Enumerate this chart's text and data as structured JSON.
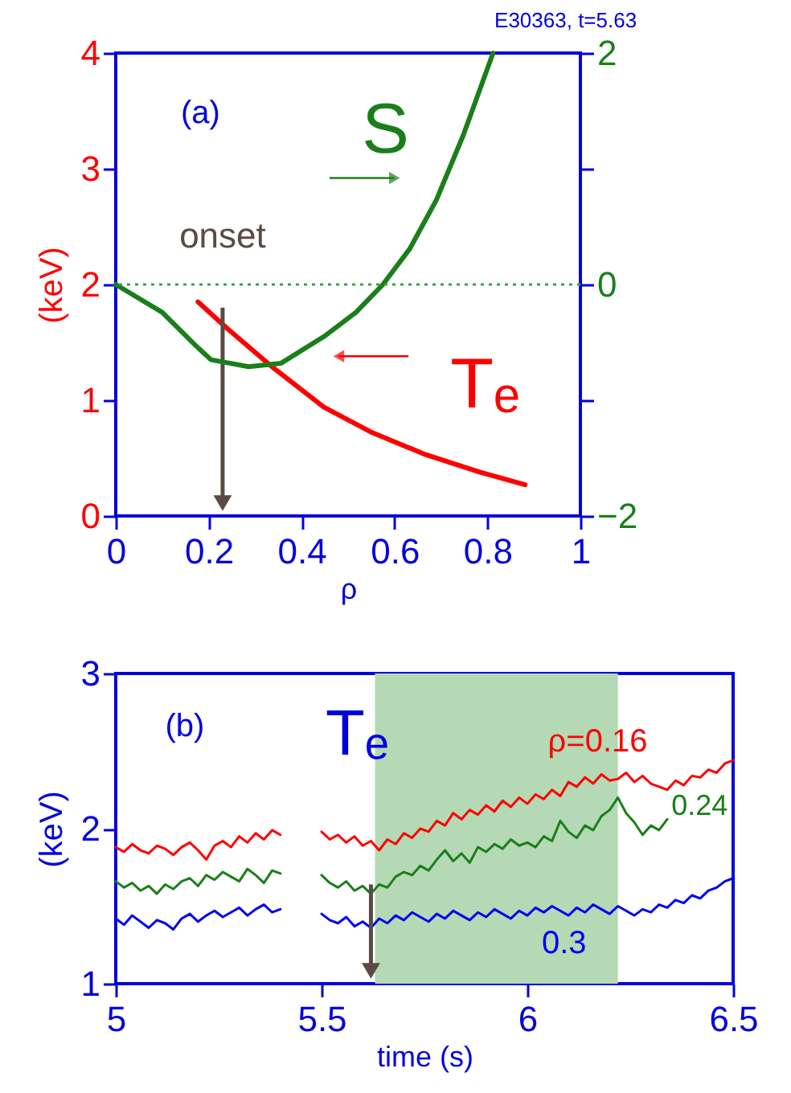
{
  "chart_data": [
    {
      "type": "line",
      "title": "E30363,  t=5.63",
      "xlabel": "ρ",
      "ylabel": "(keV)",
      "annotations": [
        "(a)"
      ],
      "xlim": [
        0,
        1
      ],
      "xticks": [
        0,
        0.2,
        0.4,
        0.6,
        0.8,
        1
      ],
      "ylim": [
        0,
        4
      ],
      "yticks": [
        0,
        1,
        2,
        3,
        4
      ],
      "y2lim": [
        -2,
        2
      ],
      "y2ticks": [
        -2,
        {
          "value": -1,
          "label": null
        },
        0,
        {
          "value": 1,
          "label": null
        },
        2
      ],
      "series": [
        {
          "name": "S",
          "color": "#1a7f1a",
          "axis": "y2",
          "x": [
            0,
            0.1,
            0.17,
            0.205,
            0.286,
            0.356,
            0.448,
            0.517,
            0.575,
            0.633,
            0.69,
            0.748,
            0.812
          ],
          "values": [
            0,
            -0.24,
            -0.52,
            -0.65,
            -0.71,
            -0.68,
            -0.45,
            -0.24,
            0,
            0.31,
            0.73,
            1.29,
            2
          ]
        },
        {
          "name": "Tₑ",
          "color": "#ff0000",
          "x": [
            0.177,
            0.24,
            0.333,
            0.448,
            0.552,
            0.667,
            0.783,
            0.881
          ],
          "values": [
            1.85,
            1.62,
            1.3,
            0.94,
            0.72,
            0.53,
            0.38,
            0.27
          ]
        }
      ],
      "ref_lines": [
        {
          "axis": "y2",
          "value": 0,
          "color": "#3aa63a",
          "line_style": "dotted"
        },
        {
          "axis": "x",
          "value": 0.23,
          "label": "onset",
          "color": "#5b4a44"
        }
      ]
    },
    {
      "type": "line",
      "xlabel": "time (s)",
      "ylabel": "(keV)",
      "annotations": [
        "(b)",
        "Tₑ"
      ],
      "xlim": [
        5,
        6.5
      ],
      "xticks": [
        5,
        5.5,
        6,
        6.5
      ],
      "ylim": [
        1,
        3
      ],
      "yticks": [
        1,
        2,
        3
      ],
      "x": [
        5,
        5.02,
        5.04,
        5.06,
        5.08,
        5.1,
        5.12,
        5.14,
        5.16,
        5.18,
        5.2,
        5.22,
        5.24,
        5.26,
        5.28,
        5.3,
        5.32,
        5.34,
        5.36,
        5.38,
        5.4,
        5.45,
        5.5,
        5.52,
        5.54,
        5.56,
        5.58,
        5.6,
        5.62,
        5.64,
        5.66,
        5.68,
        5.7,
        5.72,
        5.74,
        5.76,
        5.78,
        5.8,
        5.82,
        5.84,
        5.86,
        5.88,
        5.9,
        5.92,
        5.94,
        5.96,
        5.98,
        6,
        6.02,
        6.04,
        6.06,
        6.08,
        6.1,
        6.12,
        6.14,
        6.16,
        6.18,
        6.2,
        6.22,
        6.24,
        6.26,
        6.28,
        6.3,
        6.32,
        6.34,
        6.36,
        6.38,
        6.4,
        6.42,
        6.44,
        6.46,
        6.48,
        6.5
      ],
      "series": [
        {
          "name": "ρ=0.16",
          "color": "#ff0000",
          "values": [
            1.88,
            1.85,
            1.9,
            1.86,
            1.84,
            1.89,
            1.87,
            1.83,
            1.88,
            1.91,
            1.86,
            1.8,
            1.89,
            1.92,
            1.88,
            1.95,
            1.91,
            1.97,
            1.93,
            1.99,
            1.96,
            null,
            1.98,
            1.93,
            1.96,
            1.91,
            1.95,
            1.89,
            1.92,
            1.86,
            1.93,
            1.9,
            1.97,
            1.94,
            2.0,
            1.98,
            2.05,
            2.02,
            2.1,
            2.06,
            2.12,
            2.09,
            2.15,
            2.11,
            2.18,
            2.14,
            2.2,
            2.16,
            2.22,
            2.19,
            2.25,
            2.21,
            2.3,
            2.27,
            2.33,
            2.29,
            2.35,
            2.31,
            2.32,
            2.36,
            2.3,
            2.34,
            2.29,
            2.27,
            2.25,
            2.31,
            2.28,
            2.34,
            2.33,
            2.38,
            2.36,
            2.42,
            2.44
          ]
        },
        {
          "name": "0.24",
          "color": "#1a7f1a",
          "x": [
            5,
            5.02,
            5.04,
            5.06,
            5.08,
            5.1,
            5.12,
            5.14,
            5.16,
            5.18,
            5.2,
            5.22,
            5.24,
            5.26,
            5.28,
            5.3,
            5.32,
            5.34,
            5.36,
            5.38,
            5.4,
            5.45,
            5.5,
            5.52,
            5.54,
            5.56,
            5.58,
            5.6,
            5.62,
            5.64,
            5.66,
            5.68,
            5.7,
            5.72,
            5.74,
            5.76,
            5.78,
            5.8,
            5.82,
            5.84,
            5.86,
            5.88,
            5.9,
            5.92,
            5.94,
            5.96,
            5.98,
            6,
            6.02,
            6.04,
            6.06,
            6.08,
            6.1,
            6.12,
            6.14,
            6.16,
            6.18,
            6.2,
            6.22,
            6.24,
            6.26,
            6.28,
            6.3,
            6.32,
            6.34
          ],
          "values": [
            1.66,
            1.62,
            1.65,
            1.6,
            1.63,
            1.58,
            1.64,
            1.61,
            1.66,
            1.68,
            1.63,
            1.7,
            1.67,
            1.72,
            1.69,
            1.66,
            1.74,
            1.7,
            1.65,
            1.73,
            1.71,
            null,
            1.7,
            1.65,
            1.62,
            1.66,
            1.6,
            1.63,
            1.58,
            1.64,
            1.62,
            1.69,
            1.72,
            1.7,
            1.76,
            1.73,
            1.8,
            1.86,
            1.79,
            1.84,
            1.78,
            1.88,
            1.85,
            1.9,
            1.87,
            1.93,
            1.89,
            1.91,
            1.88,
            1.95,
            1.92,
            2.05,
            1.98,
            1.94,
            2.02,
            1.99,
            2.08,
            2.12,
            2.2,
            2.1,
            2.04,
            1.96,
            2.02,
            1.99,
            2.06
          ]
        },
        {
          "name": "0.3",
          "color": "#0000ee",
          "values": [
            1.42,
            1.38,
            1.44,
            1.4,
            1.36,
            1.41,
            1.39,
            1.35,
            1.42,
            1.45,
            1.4,
            1.44,
            1.47,
            1.43,
            1.46,
            1.49,
            1.44,
            1.48,
            1.51,
            1.46,
            1.48,
            null,
            1.45,
            1.41,
            1.39,
            1.43,
            1.37,
            1.4,
            1.36,
            1.42,
            1.39,
            1.44,
            1.41,
            1.46,
            1.43,
            1.4,
            1.45,
            1.42,
            1.47,
            1.44,
            1.41,
            1.46,
            1.43,
            1.48,
            1.45,
            1.42,
            1.47,
            1.44,
            1.49,
            1.46,
            1.5,
            1.47,
            1.44,
            1.49,
            1.46,
            1.51,
            1.48,
            1.45,
            1.5,
            1.47,
            1.44,
            1.48,
            1.46,
            1.51,
            1.49,
            1.54,
            1.52,
            1.57,
            1.55,
            1.6,
            1.62,
            1.66,
            1.68
          ]
        }
      ],
      "bands": [
        {
          "axis": "x",
          "from": 5.63,
          "to": 6.22,
          "color": "#b4d9b4"
        }
      ],
      "ref_lines": [
        {
          "axis": "x",
          "value": 5.62,
          "color": "#5b4a44"
        }
      ]
    }
  ]
}
